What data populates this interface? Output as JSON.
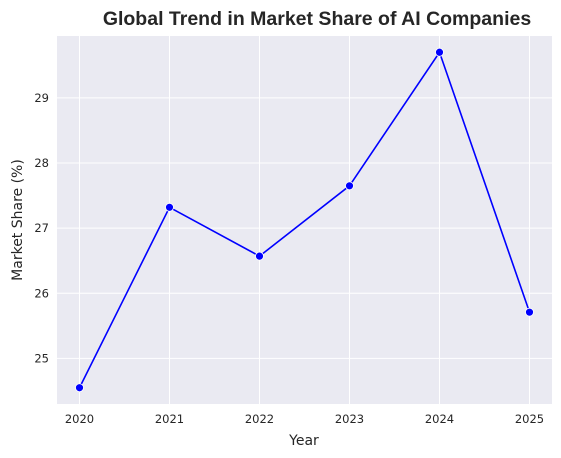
{
  "chart_data": {
    "type": "line",
    "title": "Global Trend in Market Share of AI Companies",
    "xlabel": "Year",
    "ylabel": "Market Share (%)",
    "x": [
      2020,
      2021,
      2022,
      2023,
      2024,
      2025
    ],
    "series": [
      {
        "values": [
          24.55,
          27.32,
          26.57,
          27.65,
          29.7,
          25.71
        ]
      }
    ],
    "xticks": [
      "2020",
      "2021",
      "2022",
      "2023",
      "2024",
      "2025"
    ],
    "yticks": [
      "25",
      "26",
      "27",
      "28",
      "29"
    ],
    "xlim": [
      2019.75,
      2025.25
    ],
    "ylim": [
      24.3,
      29.95
    ],
    "grid": true,
    "colors": {
      "line": "#0000ff",
      "background": "#eaeaf2",
      "grid": "#ffffff"
    }
  }
}
